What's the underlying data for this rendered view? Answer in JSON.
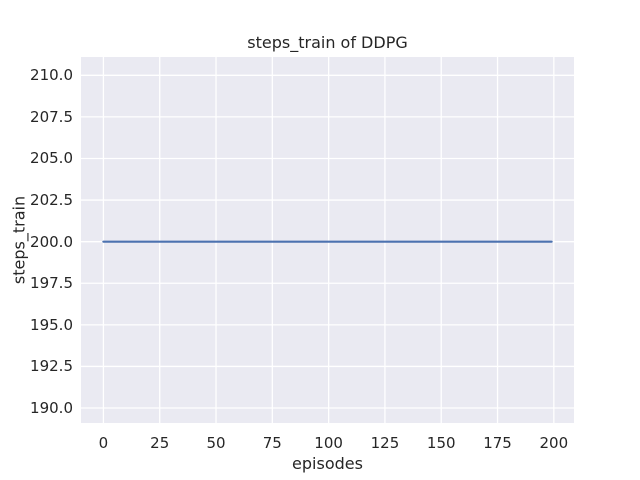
{
  "chart_data": {
    "type": "line",
    "title": "steps_train of DDPG",
    "xlabel": "episodes",
    "ylabel": "steps_train",
    "series": [
      {
        "name": "steps_train",
        "x": [
          0,
          199
        ],
        "y": [
          200,
          200
        ],
        "note": "flat horizontal line: steps_train constant at 200 for all episodes 0-199"
      }
    ],
    "xlim": [
      -9.95,
      208.95
    ],
    "ylim": [
      189.1,
      211.1
    ],
    "xticks": [
      0,
      25,
      50,
      75,
      100,
      125,
      150,
      175,
      200
    ],
    "xtick_labels": [
      "0",
      "25",
      "50",
      "75",
      "100",
      "125",
      "150",
      "175",
      "200"
    ],
    "yticks": [
      190.0,
      192.5,
      195.0,
      197.5,
      200.0,
      202.5,
      205.0,
      207.5,
      210.0
    ],
    "ytick_labels": [
      "190.0",
      "192.5",
      "195.0",
      "197.5",
      "200.0",
      "202.5",
      "205.0",
      "207.5",
      "210.0"
    ],
    "grid": true,
    "legend": false,
    "colors": {
      "line": "#4c72b0",
      "plot_background": "#eaeaf2",
      "grid": "#ffffff",
      "text": "#262626",
      "figure_background": "#ffffff"
    }
  }
}
